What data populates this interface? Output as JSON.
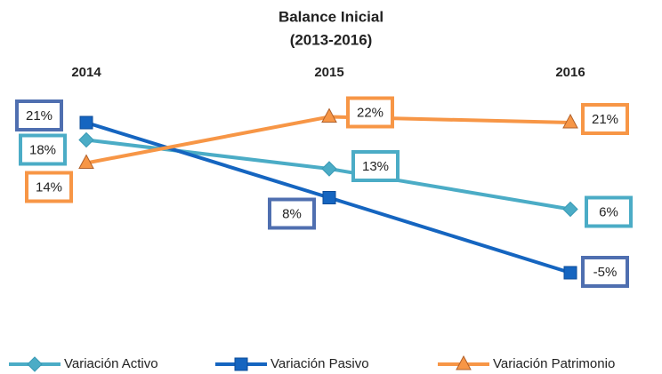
{
  "chart_data": {
    "type": "line",
    "title": "Balance Inicial",
    "subtitle": "(2013-2016)",
    "categories": [
      "2014",
      "2015",
      "2016"
    ],
    "series": [
      {
        "name": "Variación Activo",
        "color": "#4bacc6",
        "marker": "diamond",
        "values": [
          18,
          13,
          6
        ],
        "value_labels": [
          "18%",
          "13%",
          "6%"
        ]
      },
      {
        "name": "Variación Pasivo",
        "color": "#1565c0",
        "marker": "square",
        "values": [
          21,
          8,
          -5
        ],
        "value_labels": [
          "21%",
          "8%",
          "-5%"
        ]
      },
      {
        "name": "Variación Patrimonio",
        "color": "#f79646",
        "marker": "triangle",
        "values": [
          14,
          22,
          21
        ],
        "value_labels": [
          "14%",
          "22%",
          "21%"
        ]
      }
    ],
    "ylim": [
      -10,
      30
    ],
    "legend": "bottom"
  }
}
